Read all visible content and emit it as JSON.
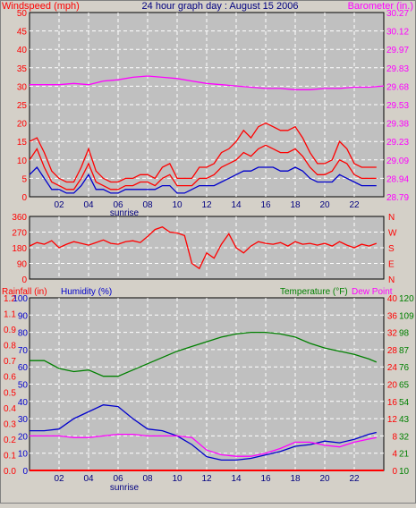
{
  "window": {
    "title": "24 hour graph day : August 15 2006",
    "bg_color": "#d4d0c8",
    "plot_color": "#c0c0c0",
    "grid_color": "#ffffff"
  },
  "chart_data": [
    {
      "type": "line",
      "title": "24 hour graph day : August 15 2006",
      "left_axis_label": "Windspeed (mph)",
      "right_axis_label": "Barometer (in.)",
      "left_ticks": [
        "0",
        "5",
        "10",
        "15",
        "20",
        "25",
        "30",
        "35",
        "40",
        "45",
        "50"
      ],
      "right_ticks": [
        "28.79",
        "28.94",
        "29.09",
        "29.23",
        "29.38",
        "29.53",
        "29.68",
        "29.83",
        "29.97",
        "30.12",
        "30.27"
      ],
      "xlim": [
        0,
        24
      ],
      "x_ticks": [
        "02",
        "04",
        "06",
        "08",
        "10",
        "12",
        "14",
        "16",
        "18",
        "20",
        "22"
      ],
      "sunrise_label": "sunrise",
      "sunrise_hour": 6,
      "ylim_left": [
        0,
        50
      ],
      "ylim_right": [
        28.79,
        30.27
      ],
      "grid": true,
      "series": [
        {
          "name": "Windspeed (mph)",
          "color": "#ff0000",
          "axis": "left",
          "x": [
            0,
            0.5,
            1,
            1.5,
            2,
            2.5,
            3,
            3.5,
            4,
            4.5,
            5,
            5.5,
            6,
            6.5,
            7,
            7.5,
            8,
            8.5,
            9,
            9.5,
            10,
            10.5,
            11,
            11.5,
            12,
            12.5,
            13,
            13.5,
            14,
            14.5,
            15,
            15.5,
            16,
            16.5,
            17,
            17.5,
            18,
            18.5,
            19,
            19.5,
            20,
            20.5,
            21,
            21.5,
            22,
            22.5,
            23,
            23.5
          ],
          "values": [
            10,
            13,
            8,
            4,
            3,
            2,
            2,
            5,
            9,
            4,
            3,
            2,
            2,
            3,
            3,
            4,
            4,
            3,
            5,
            6,
            3,
            3,
            3,
            5,
            5,
            6,
            8,
            9,
            10,
            12,
            11,
            13,
            14,
            13,
            12,
            12,
            13,
            11,
            8,
            6,
            6,
            7,
            10,
            9,
            6,
            5,
            5,
            5
          ]
        },
        {
          "name": "Gust (mph)",
          "color": "#ff0000",
          "axis": "left",
          "x": [
            0,
            0.5,
            1,
            1.5,
            2,
            2.5,
            3,
            3.5,
            4,
            4.5,
            5,
            5.5,
            6,
            6.5,
            7,
            7.5,
            8,
            8.5,
            9,
            9.5,
            10,
            10.5,
            11,
            11.5,
            12,
            12.5,
            13,
            13.5,
            14,
            14.5,
            15,
            15.5,
            16,
            16.5,
            17,
            17.5,
            18,
            18.5,
            19,
            19.5,
            20,
            20.5,
            21,
            21.5,
            22,
            22.5,
            23,
            23.5
          ],
          "values": [
            15,
            16,
            12,
            7,
            5,
            4,
            4,
            8,
            13,
            7,
            5,
            4,
            4,
            5,
            5,
            6,
            6,
            5,
            8,
            9,
            5,
            5,
            5,
            8,
            8,
            9,
            12,
            13,
            15,
            18,
            16,
            19,
            20,
            19,
            18,
            18,
            19,
            16,
            12,
            9,
            9,
            10,
            15,
            13,
            9,
            8,
            8,
            8
          ]
        },
        {
          "name": "Average wind (mph)",
          "color": "#0000cc",
          "axis": "left",
          "x": [
            0,
            0.5,
            1,
            1.5,
            2,
            2.5,
            3,
            3.5,
            4,
            4.5,
            5,
            5.5,
            6,
            6.5,
            7,
            7.5,
            8,
            8.5,
            9,
            9.5,
            10,
            10.5,
            11,
            11.5,
            12,
            12.5,
            13,
            13.5,
            14,
            14.5,
            15,
            15.5,
            16,
            16.5,
            17,
            17.5,
            18,
            18.5,
            19,
            19.5,
            20,
            20.5,
            21,
            21.5,
            22,
            22.5,
            23,
            23.5
          ],
          "values": [
            6,
            8,
            5,
            2,
            2,
            1,
            1,
            3,
            6,
            2,
            2,
            1,
            1,
            2,
            2,
            2,
            2,
            2,
            3,
            3,
            1,
            1,
            2,
            3,
            3,
            3,
            4,
            5,
            6,
            7,
            7,
            8,
            8,
            8,
            7,
            7,
            8,
            7,
            5,
            4,
            4,
            4,
            6,
            5,
            4,
            3,
            3,
            3
          ]
        },
        {
          "name": "Barometer (in.)",
          "color": "#ff00ff",
          "axis": "right",
          "x": [
            0,
            1,
            2,
            3,
            4,
            5,
            6,
            7,
            8,
            9,
            10,
            11,
            12,
            13,
            14,
            15,
            16,
            17,
            18,
            19,
            20,
            21,
            22,
            23,
            24
          ],
          "values": [
            29.69,
            29.69,
            29.69,
            29.7,
            29.69,
            29.72,
            29.73,
            29.75,
            29.76,
            29.75,
            29.74,
            29.72,
            29.7,
            29.69,
            29.68,
            29.67,
            29.66,
            29.66,
            29.65,
            29.65,
            29.66,
            29.66,
            29.67,
            29.67,
            29.68
          ]
        }
      ]
    },
    {
      "type": "line",
      "left_ticks": [
        "360",
        "270",
        "180",
        "90",
        "0"
      ],
      "right_ticks": [
        "N",
        "W",
        "S",
        "E",
        "N"
      ],
      "xlim": [
        0,
        24
      ],
      "ylim": [
        0,
        360
      ],
      "grid": true,
      "series": [
        {
          "name": "Wind direction (deg)",
          "color": "#ff0000",
          "x": [
            0,
            0.5,
            1,
            1.5,
            2,
            2.5,
            3,
            3.5,
            4,
            4.5,
            5,
            5.5,
            6,
            6.5,
            7,
            7.5,
            8,
            8.5,
            9,
            9.5,
            10,
            10.5,
            11,
            11.5,
            12,
            12.5,
            13,
            13.5,
            14,
            14.5,
            15,
            15.5,
            16,
            16.5,
            17,
            17.5,
            18,
            18.5,
            19,
            19.5,
            20,
            20.5,
            21,
            21.5,
            22,
            22.5,
            23,
            23.5
          ],
          "values": [
            190,
            210,
            200,
            220,
            180,
            200,
            215,
            205,
            195,
            210,
            225,
            205,
            200,
            215,
            220,
            210,
            245,
            285,
            300,
            270,
            265,
            250,
            90,
            60,
            150,
            120,
            200,
            260,
            180,
            150,
            190,
            215,
            205,
            200,
            210,
            190,
            215,
            200,
            205,
            195,
            205,
            190,
            215,
            195,
            180,
            200,
            190,
            205
          ]
        }
      ]
    },
    {
      "type": "line",
      "left_axis_labels": [
        "Rainfall (in)",
        "Humidity (%)"
      ],
      "right_axis_labels": [
        "Temperature (°F)",
        "Dew Point"
      ],
      "rain_ticks": [
        "0.0",
        "0.1",
        "0.2",
        "0.3",
        "0.4",
        "0.5",
        "0.6",
        "0.7",
        "0.8",
        "0.9",
        "1.1",
        "1.2"
      ],
      "humidity_ticks": [
        "0",
        "10",
        "20",
        "30",
        "40",
        "50",
        "60",
        "70",
        "80",
        "90",
        "100"
      ],
      "temp_c_ticks": [
        "0",
        "4",
        "8",
        "12",
        "16",
        "20",
        "24",
        "28",
        "32",
        "36",
        "40"
      ],
      "temp_f_ticks": [
        "10",
        "21",
        "32",
        "43",
        "54",
        "65",
        "76",
        "87",
        "98",
        "109",
        "120"
      ],
      "xlim": [
        0,
        24
      ],
      "x_ticks": [
        "02",
        "04",
        "06",
        "08",
        "10",
        "12",
        "14",
        "16",
        "18",
        "20",
        "22"
      ],
      "sunrise_label": "sunrise",
      "sunrise_hour": 6,
      "ylim": [
        0,
        100
      ],
      "grid": true,
      "series": [
        {
          "name": "Temperature (°F)",
          "color": "#008000",
          "axis": "temp_f",
          "x": [
            0,
            1,
            2,
            3,
            4,
            5,
            6,
            7,
            8,
            9,
            10,
            11,
            12,
            13,
            14,
            15,
            16,
            17,
            18,
            19,
            20,
            21,
            22,
            23,
            23.5
          ],
          "values": [
            80,
            80,
            75,
            73,
            74,
            70,
            70,
            74,
            78,
            82,
            86,
            89,
            92,
            95,
            97,
            98,
            98,
            97,
            95,
            91,
            88,
            86,
            84,
            81,
            79
          ]
        },
        {
          "name": "Humidity (%)",
          "color": "#0000cc",
          "axis": "humidity",
          "x": [
            0,
            1,
            2,
            3,
            4,
            5,
            6,
            7,
            8,
            9,
            10,
            11,
            12,
            13,
            14,
            15,
            16,
            17,
            18,
            19,
            20,
            21,
            22,
            23,
            23.5
          ],
          "values": [
            23,
            23,
            24,
            30,
            34,
            38,
            37,
            30,
            24,
            23,
            20,
            15,
            8,
            6,
            6,
            7,
            9,
            11,
            14,
            15,
            17,
            16,
            18,
            21,
            22
          ]
        },
        {
          "name": "Dew Point",
          "color": "#ff00ff",
          "axis": "temp_f",
          "x": [
            0,
            1,
            2,
            3,
            4,
            5,
            6,
            7,
            8,
            9,
            10,
            11,
            12,
            13,
            14,
            15,
            16,
            17,
            18,
            19,
            20,
            21,
            22,
            23,
            23.5
          ],
          "values": [
            32,
            32,
            32,
            31,
            31,
            32,
            33,
            33,
            32,
            32,
            32,
            31,
            23,
            20,
            19,
            19,
            21,
            24,
            28,
            28,
            26,
            25,
            28,
            30,
            31
          ]
        },
        {
          "name": "Rainfall (in)",
          "color": "#ff0000",
          "axis": "rain",
          "x": [
            0,
            24
          ],
          "values": [
            0,
            0
          ]
        }
      ]
    }
  ]
}
